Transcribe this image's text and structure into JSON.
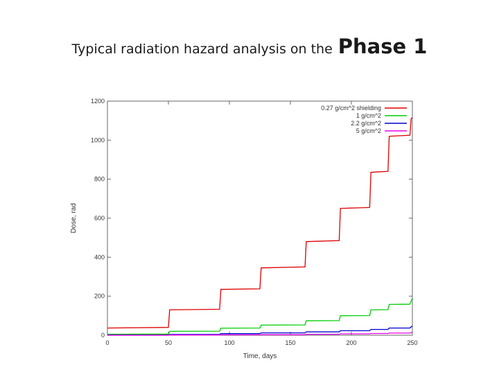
{
  "title": {
    "prefix": "Typical radiation hazard analysis on the",
    "emphasis": "Phase 1"
  },
  "chart_data": {
    "type": "line",
    "title": "",
    "xlabel": "Time, days",
    "ylabel": "Dose, rad",
    "xlim": [
      0,
      250
    ],
    "ylim": [
      0,
      1200
    ],
    "xticks": [
      0,
      50,
      100,
      150,
      200,
      250
    ],
    "yticks": [
      0,
      200,
      400,
      600,
      800,
      1000,
      1200
    ],
    "grid": false,
    "legend_position": "top-right",
    "series": [
      {
        "name": "0.27 g/cm^2 shielding",
        "color": "#dd0000",
        "x": [
          0,
          50,
          51,
          92,
          93,
          125,
          126,
          162,
          163,
          190,
          191,
          215,
          216,
          230,
          231,
          248,
          249,
          250
        ],
        "y": [
          37,
          40,
          130,
          133,
          235,
          238,
          345,
          350,
          480,
          485,
          650,
          655,
          835,
          840,
          1020,
          1025,
          1110,
          1115
        ]
      },
      {
        "name": "1 g/cm^2",
        "color": "#00cc00",
        "x": [
          0,
          50,
          51,
          92,
          93,
          125,
          126,
          162,
          163,
          190,
          191,
          215,
          216,
          230,
          231,
          248,
          249,
          250
        ],
        "y": [
          5,
          6,
          20,
          21,
          36,
          37,
          52,
          53,
          74,
          75,
          100,
          101,
          130,
          131,
          158,
          159,
          175,
          190
        ]
      },
      {
        "name": "2.2 g/cm^2",
        "color": "#0000cc",
        "x": [
          0,
          50,
          51,
          92,
          93,
          125,
          126,
          162,
          163,
          190,
          191,
          215,
          216,
          230,
          231,
          248,
          249,
          250
        ],
        "y": [
          1,
          1,
          4,
          4,
          8,
          8,
          12,
          12,
          17,
          17,
          23,
          23,
          30,
          30,
          37,
          37,
          43,
          47
        ]
      },
      {
        "name": "5 g/cm^2",
        "color": "#ee00ee",
        "x": [
          0,
          50,
          51,
          92,
          93,
          125,
          126,
          162,
          163,
          190,
          191,
          215,
          216,
          230,
          231,
          248,
          249,
          250
        ],
        "y": [
          0,
          0,
          1,
          1,
          2,
          2,
          3,
          3,
          5,
          5,
          7,
          7,
          9,
          9,
          11,
          11,
          13,
          15
        ]
      }
    ]
  }
}
